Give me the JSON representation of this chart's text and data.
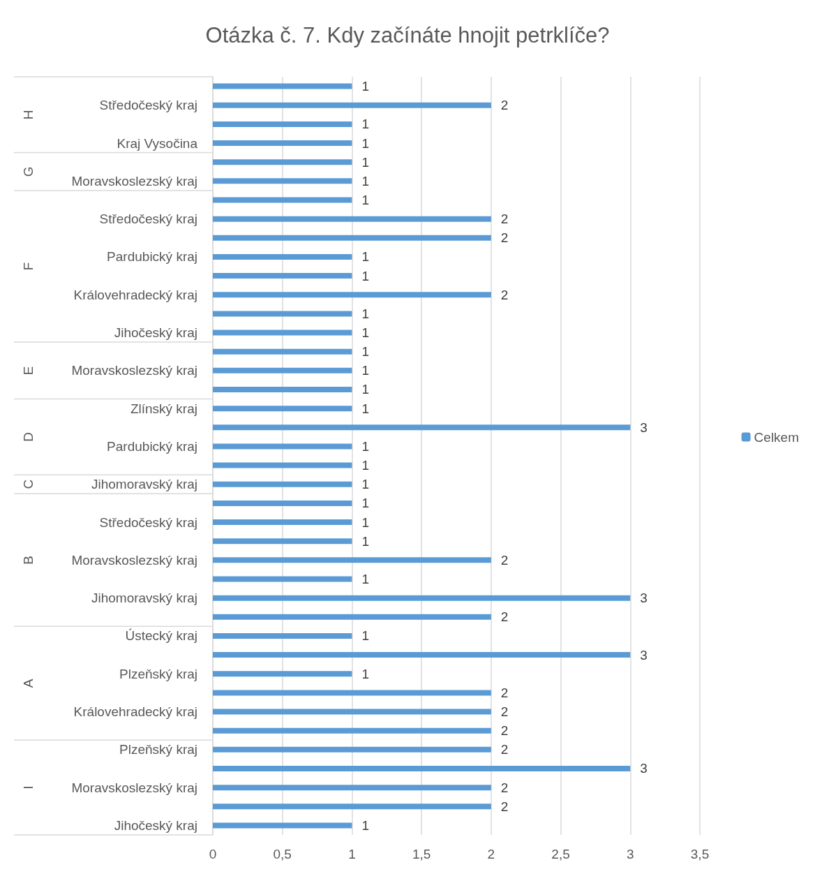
{
  "chart_data": {
    "type": "bar",
    "orientation": "horizontal",
    "title": "Otázka č. 7. Kdy začínáte hnojit petrklíče?",
    "categories": [
      null,
      "Středočeský kraj",
      null,
      "Kraj Vysočina",
      null,
      "Moravskoslezský kraj",
      null,
      "Středočeský kraj",
      null,
      "Pardubický kraj",
      null,
      "Královehradecký kraj",
      null,
      "Jihočeský kraj",
      null,
      "Moravskoslezský kraj",
      null,
      "Zlínský kraj",
      null,
      "Pardubický kraj",
      null,
      "Jihomoravský kraj",
      null,
      "Středočeský kraj",
      null,
      "Moravskoslezský kraj",
      null,
      "Jihomoravský kraj",
      null,
      "Ústecký kraj",
      null,
      "Plzeňský kraj",
      null,
      "Královehradecký kraj",
      null,
      "Plzeňský kraj",
      null,
      "Moravskoslezský kraj",
      null,
      "Jihočeský kraj"
    ],
    "series": [
      {
        "name": "Celkem",
        "color": "#5b9bd5",
        "values": [
          1,
          2,
          1,
          1,
          1,
          1,
          1,
          2,
          2,
          1,
          1,
          2,
          1,
          1,
          1,
          1,
          1,
          1,
          3,
          1,
          1,
          1,
          1,
          1,
          1,
          2,
          1,
          3,
          2,
          1,
          3,
          1,
          2,
          2,
          2,
          2,
          3,
          2,
          2,
          1
        ]
      }
    ],
    "xlim": [
      0,
      3.5
    ],
    "xticks": [
      0,
      {
        "value": 0.5,
        "label": "0,5"
      },
      1,
      {
        "value": 1.5,
        "label": "1,5"
      },
      2,
      {
        "value": 2.5,
        "label": "2,5"
      },
      3,
      {
        "value": 3.5,
        "label": "3,5"
      }
    ],
    "grid": "x",
    "legend": "right",
    "data_labels": true,
    "annotations": [
      "H",
      "G",
      "F",
      "E",
      "D",
      "C",
      "B",
      "A",
      "I"
    ]
  }
}
